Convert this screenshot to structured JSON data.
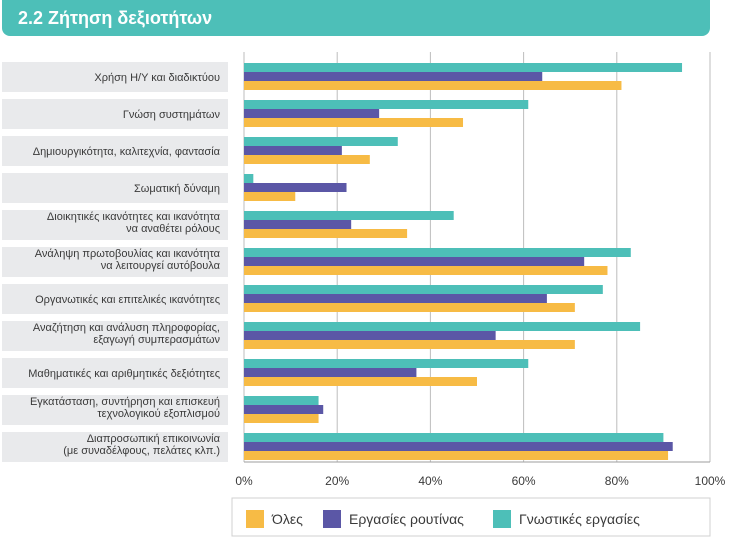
{
  "header": {
    "title": "2.2 Ζήτηση δεξιοτήτων"
  },
  "chart_data": {
    "type": "bar",
    "orientation": "horizontal",
    "title": "",
    "categories": [
      "Χρήση Η/Υ και διαδικτύου",
      "Γνώση συστημάτων",
      "Δημιουργικότητα, καλιτεχνία, φαντασία",
      "Σωματική δύναμη",
      "Διοικητικές ικανότητες και ικανότητα να αναθέτει ρόλους",
      "Ανάληψη πρωτοβουλίας και ικανότητα να λειτουργεί αυτόβουλα",
      "Οργανωτικές και επιτελικές ικανότητες",
      "Αναζήτηση και ανάλυση πληροφορίας, εξαγωγή συμπερασμάτων",
      "Μαθηματικές και αριθμητικές δεξιότητες",
      "Εγκατάσταση, συντήρηση και επισκευή τεχνολογικού εξοπλισμού",
      "Διαπροσωπική επικοινωνία (με συναδέλφους, πελάτες κλπ.)"
    ],
    "category_lines": [
      [
        "Χρήση Η/Υ και διαδικτύου"
      ],
      [
        "Γνώση συστημάτων"
      ],
      [
        "Δημιουργικότητα, καλιτεχνία, φαντασία"
      ],
      [
        "Σωματική δύναμη"
      ],
      [
        "Διοικητικές ικανότητες και ικανότητα",
        "να αναθέτει ρόλους"
      ],
      [
        "Ανάληψη πρωτοβουλίας και ικανότητα",
        "να λειτουργεί αυτόβουλα"
      ],
      [
        "Οργανωτικές και επιτελικές ικανότητες"
      ],
      [
        "Αναζήτηση και ανάλυση πληροφορίας,",
        "εξαγωγή συμπερασμάτων"
      ],
      [
        "Μαθηματικές και αριθμητικές δεξιότητες"
      ],
      [
        "Εγκατάσταση, συντήρηση και επισκευή",
        "τεχνολογικού εξοπλισμού"
      ],
      [
        "Διαπροσωπική επικοινωνία",
        "(με συναδέλφους, πελάτες κλπ.)"
      ]
    ],
    "series": [
      {
        "name": "Γνωστικές εργασίες",
        "color": "#4dbfb8",
        "values": [
          94,
          61,
          33,
          2,
          45,
          83,
          77,
          85,
          61,
          16,
          90
        ]
      },
      {
        "name": "Εργασίες ρουτίνας",
        "color": "#5b57a6",
        "values": [
          64,
          29,
          21,
          22,
          23,
          73,
          65,
          54,
          37,
          17,
          92
        ]
      },
      {
        "name": "Όλες",
        "color": "#f7bb45",
        "values": [
          81,
          47,
          27,
          11,
          35,
          78,
          71,
          71,
          50,
          16,
          91
        ]
      }
    ],
    "bar_order_in_group": [
      "Γνωστικές εργασίες",
      "Εργασίες ρουτίνας",
      "Όλες"
    ],
    "legend_order": [
      "Όλες",
      "Εργασίες ρουτίνας",
      "Γνωστικές εργασίες"
    ],
    "xlim": [
      0,
      100
    ],
    "xticks": [
      0,
      20,
      40,
      60,
      80,
      100
    ],
    "xtick_labels": [
      "0%",
      "20%",
      "40%",
      "60%",
      "80%",
      "100%"
    ],
    "grid": "vertical",
    "legend_position": "bottom"
  }
}
